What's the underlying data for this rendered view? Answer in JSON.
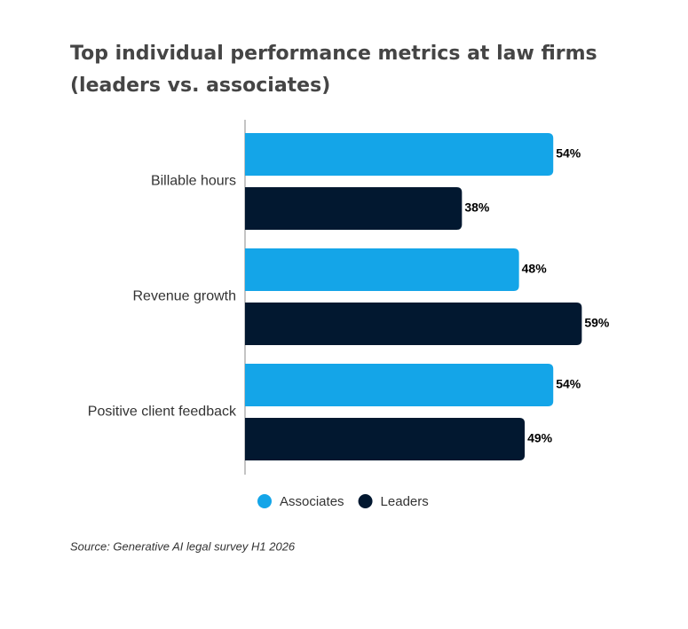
{
  "chart_data": {
    "type": "bar",
    "orientation": "horizontal",
    "title": "Top individual performance metrics at law firms",
    "subtitle": "(leaders vs. associates)",
    "categories": [
      "Billable hours",
      "Revenue growth",
      "Positive client feedback"
    ],
    "series": [
      {
        "name": "Associates",
        "color": "#14a5e8",
        "values": [
          54,
          48,
          54
        ],
        "value_labels": [
          "54%",
          "48%",
          "54%"
        ]
      },
      {
        "name": "Leaders",
        "color": "#021830",
        "values": [
          38,
          59,
          49
        ],
        "value_labels": [
          "38%",
          "59%",
          "49%"
        ]
      }
    ],
    "source": "Source: Generative AI legal survey H1 2026"
  }
}
